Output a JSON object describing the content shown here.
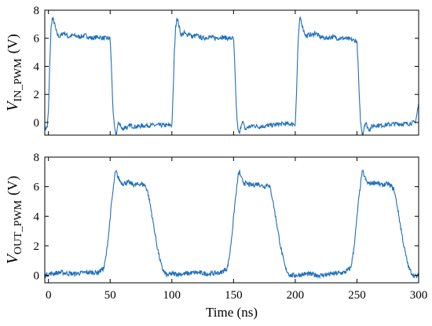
{
  "chart_data": [
    {
      "type": "line",
      "ylabel": {
        "main": "V",
        "sub": "IN_PWM",
        "unit": "(V)"
      },
      "xlim": [
        -3,
        300
      ],
      "ylim": [
        -0.9,
        8
      ],
      "yticks": [
        0,
        2,
        4,
        6,
        8
      ],
      "xticks": [
        0,
        50,
        100,
        150,
        200,
        250,
        300
      ],
      "grid": false,
      "color": "#1f6fb8",
      "series": [
        {
          "x": [
            -3,
            -1,
            0,
            1,
            2,
            3,
            4,
            5,
            6,
            7,
            8,
            9,
            10,
            12,
            14,
            16,
            20,
            25,
            30,
            35,
            40,
            45,
            50,
            51,
            52,
            53,
            54,
            55,
            56,
            57,
            58,
            59,
            60,
            62,
            64,
            66,
            70,
            80,
            90,
            100,
            101,
            102,
            103,
            104,
            105,
            106,
            107,
            108,
            109,
            110,
            112,
            114,
            116,
            120,
            125,
            130,
            135,
            140,
            145,
            150,
            151,
            152,
            153,
            154,
            155,
            156,
            157,
            158,
            159,
            160,
            162,
            164,
            166,
            170,
            180,
            190,
            200,
            201,
            202,
            203,
            204,
            205,
            206,
            207,
            208,
            209,
            210,
            212,
            214,
            216,
            220,
            225,
            230,
            235,
            240,
            245,
            250,
            251,
            252,
            253,
            254,
            255,
            256,
            257,
            258,
            259,
            260,
            262,
            264,
            266,
            270,
            280,
            290,
            297,
            298,
            299,
            300
          ],
          "values": [
            -0.5,
            -0.3,
            0.8,
            4.0,
            6.6,
            7.4,
            7.3,
            7.0,
            6.6,
            6.3,
            6.2,
            6.1,
            6.2,
            6.4,
            6.3,
            6.1,
            6.2,
            6.1,
            6.2,
            6.0,
            6.1,
            6.0,
            6.0,
            4.0,
            1.5,
            0.0,
            -0.7,
            -0.8,
            -0.3,
            0.0,
            -0.1,
            -0.4,
            -0.5,
            -0.3,
            -0.4,
            -0.2,
            -0.3,
            -0.2,
            -0.2,
            -0.2,
            2.0,
            5.0,
            6.7,
            7.5,
            7.2,
            6.8,
            6.4,
            6.2,
            6.3,
            6.4,
            6.2,
            6.4,
            6.1,
            6.2,
            6.0,
            6.1,
            6.0,
            6.1,
            6.0,
            6.0,
            4.0,
            1.5,
            0.0,
            -0.7,
            -0.8,
            -0.2,
            0.1,
            -0.1,
            -0.4,
            -0.5,
            -0.3,
            -0.3,
            -0.2,
            -0.3,
            -0.2,
            -0.1,
            -0.1,
            2.0,
            5.0,
            6.7,
            7.5,
            7.2,
            6.8,
            6.5,
            6.3,
            6.1,
            6.2,
            6.3,
            6.2,
            6.4,
            6.1,
            6.0,
            6.1,
            6.0,
            6.0,
            5.9,
            5.8,
            4.0,
            1.5,
            0.0,
            -0.7,
            -0.8,
            -0.2,
            0.0,
            -0.2,
            -0.4,
            -0.5,
            -0.3,
            -0.2,
            -0.2,
            -0.2,
            -0.1,
            -0.1,
            0.0,
            0.3,
            0.8,
            1.3
          ]
        }
      ]
    },
    {
      "type": "line",
      "ylabel": {
        "main": "V",
        "sub": "OUT_PWM",
        "unit": "(V)"
      },
      "xlabel": "Time (ns)",
      "xlim": [
        -3,
        300
      ],
      "ylim": [
        -0.5,
        8
      ],
      "yticks": [
        0,
        2,
        4,
        6,
        8
      ],
      "xticks": [
        0,
        50,
        100,
        150,
        200,
        250,
        300
      ],
      "grid": false,
      "color": "#1f6fb8",
      "series": [
        {
          "x": [
            -3,
            0,
            10,
            20,
            30,
            40,
            45,
            47,
            49,
            51,
            53,
            54,
            55,
            56,
            58,
            60,
            65,
            70,
            75,
            78,
            80,
            82,
            84,
            86,
            88,
            90,
            92,
            94,
            96,
            100,
            110,
            120,
            130,
            140,
            145,
            147,
            149,
            151,
            153,
            154,
            155,
            156,
            158,
            160,
            165,
            170,
            175,
            178,
            180,
            182,
            184,
            186,
            188,
            190,
            192,
            194,
            196,
            200,
            210,
            220,
            230,
            240,
            245,
            247,
            249,
            251,
            253,
            254,
            255,
            256,
            258,
            260,
            265,
            270,
            275,
            278,
            280,
            282,
            284,
            286,
            288,
            290,
            292,
            294,
            296,
            298,
            300
          ],
          "values": [
            0.0,
            0.1,
            0.2,
            0.1,
            0.2,
            0.2,
            0.5,
            1.5,
            3.0,
            4.8,
            6.2,
            6.9,
            7.0,
            6.7,
            6.4,
            6.2,
            6.3,
            6.1,
            6.2,
            6.1,
            5.8,
            5.0,
            4.0,
            3.0,
            2.0,
            1.2,
            0.5,
            0.2,
            0.0,
            0.1,
            0.1,
            0.2,
            0.1,
            0.2,
            0.5,
            1.5,
            3.0,
            4.8,
            6.2,
            6.9,
            7.0,
            6.6,
            6.3,
            6.2,
            6.1,
            6.2,
            6.0,
            6.2,
            5.8,
            5.0,
            4.0,
            3.0,
            2.0,
            1.2,
            0.5,
            0.2,
            0.0,
            0.0,
            0.1,
            0.0,
            0.1,
            0.2,
            0.5,
            1.5,
            3.0,
            4.8,
            6.2,
            6.9,
            7.0,
            6.7,
            6.3,
            6.2,
            6.3,
            6.1,
            6.2,
            6.0,
            5.8,
            5.0,
            4.0,
            3.0,
            2.0,
            1.2,
            0.5,
            0.2,
            0.0,
            -0.1,
            0.0
          ]
        }
      ]
    }
  ]
}
